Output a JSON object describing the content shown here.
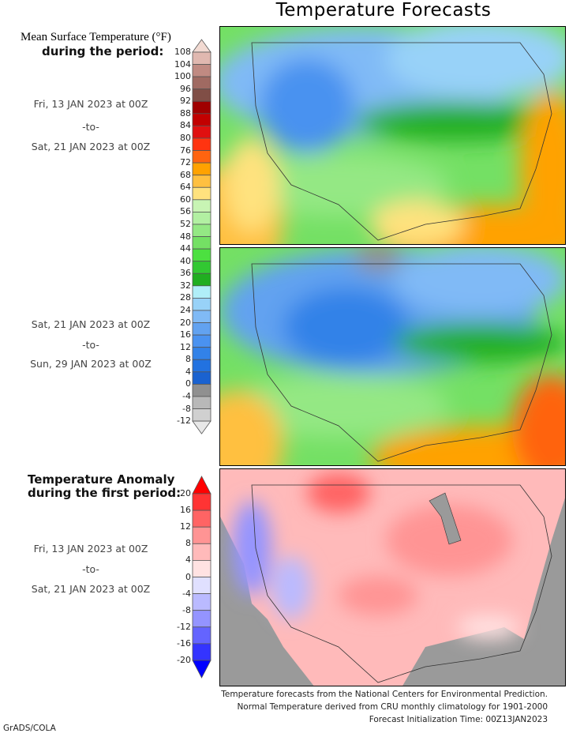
{
  "title": "Temperature Forecasts",
  "temp_legend": {
    "heading_line1": "Mean Surface Temperature (°F)",
    "heading_line2": "during the period:",
    "ticks": [
      "108",
      "104",
      "100",
      "96",
      "92",
      "88",
      "84",
      "80",
      "76",
      "72",
      "68",
      "64",
      "60",
      "56",
      "52",
      "48",
      "44",
      "40",
      "36",
      "32",
      "28",
      "24",
      "20",
      "16",
      "12",
      "8",
      "4",
      "0",
      "-4",
      "-8",
      "-12"
    ],
    "colors": [
      "#f2dad2",
      "#e0b8b0",
      "#c08a82",
      "#a06a62",
      "#804e46",
      "#a00000",
      "#c20000",
      "#e01010",
      "#ff3410",
      "#ff6410",
      "#ffa200",
      "#ffc040",
      "#ffe27e",
      "#c8f4b4",
      "#b2f0a2",
      "#94e884",
      "#74e064",
      "#4ce040",
      "#32c832",
      "#20ae20",
      "#b0eef8",
      "#98d2f8",
      "#80baf6",
      "#62a2f0",
      "#4a92f0",
      "#3282e8",
      "#2272e0",
      "#1a62d0",
      "#909090",
      "#b8b8b8",
      "#d0d0d0",
      "#e8e8e8"
    ]
  },
  "period1": {
    "start": "Fri, 13 JAN 2023 at 00Z",
    "sep": "-to-",
    "end": "Sat, 21 JAN 2023 at 00Z"
  },
  "period2": {
    "start": "Sat, 21 JAN 2023 at 00Z",
    "sep": "-to-",
    "end": "Sun, 29 JAN 2023 at 00Z"
  },
  "anomaly_legend": {
    "heading_line1": "Temperature Anomaly",
    "heading_line2": "during the first period:",
    "ticks": [
      "20",
      "16",
      "12",
      "8",
      "4",
      "0",
      "-4",
      "-8",
      "-12",
      "-16",
      "-20"
    ],
    "colors": [
      "#ff0000",
      "#ff3434",
      "#ff6464",
      "#ff9494",
      "#ffbaba",
      "#ffe2e2",
      "#e0e0ff",
      "#babaff",
      "#9494ff",
      "#6464ff",
      "#3434ff",
      "#0000ff"
    ]
  },
  "period3": {
    "start": "Fri, 13 JAN 2023 at 00Z",
    "sep": "-to-",
    "end": "Sat, 21 JAN 2023 at 00Z"
  },
  "footer": {
    "line1": "Temperature forecasts from the National Centers for Environmental Prediction.",
    "line2": "Normal Temperature derived from CRU monthly climatology for 1901-2000",
    "line3": "Forecast Initialization Time: 00Z13JAN2023"
  },
  "credit": "GrADS/COLA"
}
